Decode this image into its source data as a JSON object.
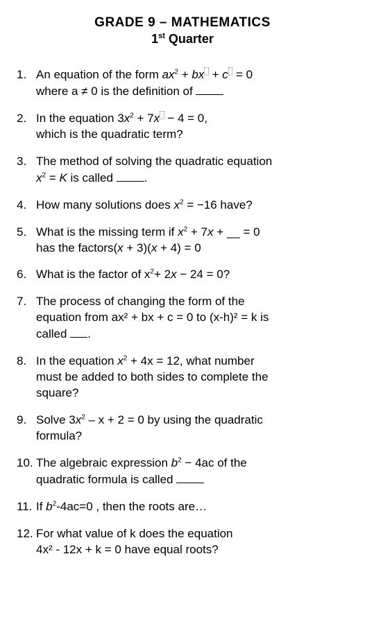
{
  "header": {
    "title": "GRADE 9 – MATHEMATICS",
    "subtitle_pre": "1",
    "subtitle_sup": "st",
    "subtitle_post": " Quarter"
  },
  "questions": [
    {
      "num": "1.",
      "line1_a": "An equation of the form  ",
      "line1_b": "ax",
      "line1_c": " + ",
      "line1_d": "bx",
      "line1_e": " + ",
      "line1_f": "c",
      "line1_g": " = 0",
      "line2": "where a ≠ 0 is the definition of "
    },
    {
      "num": "2.",
      "line1_a": "In the equation  3",
      "line1_b": "x",
      "line1_c": " + 7",
      "line1_d": "x",
      "line1_e": " − 4 = 0,",
      "line2": "which is the quadratic term?"
    },
    {
      "num": "3.",
      "line1": "The method of solving the quadratic equation",
      "line2_a": "x",
      "line2_b": " = ",
      "line2_c": "K",
      "line2_d": " is called ",
      "line2_e": "."
    },
    {
      "num": "4.",
      "line1_a": "How many solutions does  ",
      "line1_b": "x",
      "line1_c": " = −16 have?"
    },
    {
      "num": "5.",
      "line1_a": "What is the missing term if ",
      "line1_b": "x",
      "line1_c": " + 7",
      "line1_d": "x",
      "line1_e": " + __ = 0",
      "line2_a": "has the factors(",
      "line2_b": "x",
      "line2_c": " + 3)(",
      "line2_d": "x",
      "line2_e": " + 4) =  0"
    },
    {
      "num": "6.",
      "line1_a": "What is the factor of x",
      "line1_b": "+ 2",
      "line1_c": "x ",
      "line1_d": " − 24  = 0?"
    },
    {
      "num": "7.",
      "line1": "The process of changing the form of the",
      "line2": "equation from ax² + bx + c = 0 to (x-h)² = k is",
      "line3_a": "called ",
      "line3_b": "."
    },
    {
      "num": "8.",
      "line1_a": "In the equation  ",
      "line1_b": "x",
      "line1_c": " + 4x = 12, what number",
      "line2": "must be added to both sides to complete the",
      "line3": "square?"
    },
    {
      "num": "9.",
      "line1_a": "Solve 3",
      "line1_b": "x",
      "line1_c": " – x + 2 = 0 by using the quadratic",
      "line2": "formula?"
    },
    {
      "num": "10.",
      "line1_a": "The algebraic expression ",
      "line1_b": "b",
      "line1_c": " − 4ac of the",
      "line2_a": "quadratic formula is called "
    },
    {
      "num": "11.",
      "line1_a": "If  ",
      "line1_b": "b",
      "line1_c": "-4ac=0 , then  the roots are…"
    },
    {
      "num": "12.",
      "line1": "For what value of k does the equation",
      "line2": "4x²  - 12x + k = 0 have equal roots?"
    }
  ]
}
